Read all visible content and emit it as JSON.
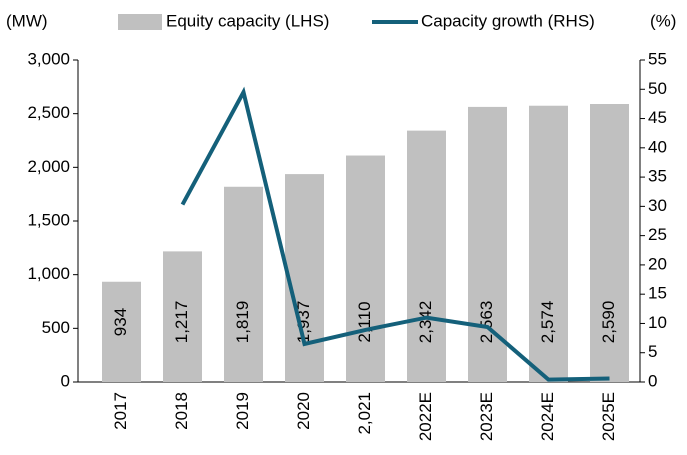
{
  "chart_data": {
    "type": "bar_line",
    "y_unit": "(MW)",
    "y2_unit": "(%)",
    "categories": [
      "2017",
      "2018",
      "2019",
      "2020",
      "2,021",
      "2022E",
      "2023E",
      "2024E",
      "2025E"
    ],
    "series": [
      {
        "name": "Equity capacity (LHS)",
        "type": "bar",
        "color": "#c0c0c0",
        "values": [
          934,
          1217,
          1819,
          1937,
          2110,
          2342,
          2563,
          2574,
          2590
        ],
        "value_labels": [
          "934",
          "1,217",
          "1,819",
          "1,937",
          "2,110",
          "2,342",
          "2,563",
          "2,574",
          "2,590"
        ]
      },
      {
        "name": "Capacity growth (RHS)",
        "type": "line",
        "axis": "y2",
        "color": "#14607a",
        "values": [
          null,
          30.3,
          49.5,
          6.5,
          8.9,
          11.0,
          9.4,
          0.4,
          0.6
        ]
      }
    ],
    "ylim": [
      0,
      3000
    ],
    "yticks": [
      0,
      500,
      {
        "value": 1000,
        "label": "1,000"
      },
      {
        "value": 1500,
        "label": "1,500"
      },
      {
        "value": 2000,
        "label": "2,000"
      },
      {
        "value": 2500,
        "label": "2,500"
      },
      {
        "value": 3000,
        "label": "3,000"
      }
    ],
    "y2lim": [
      0,
      55
    ],
    "y2ticks": [
      0,
      5,
      10,
      15,
      20,
      25,
      30,
      35,
      40,
      45,
      50,
      55
    ]
  }
}
